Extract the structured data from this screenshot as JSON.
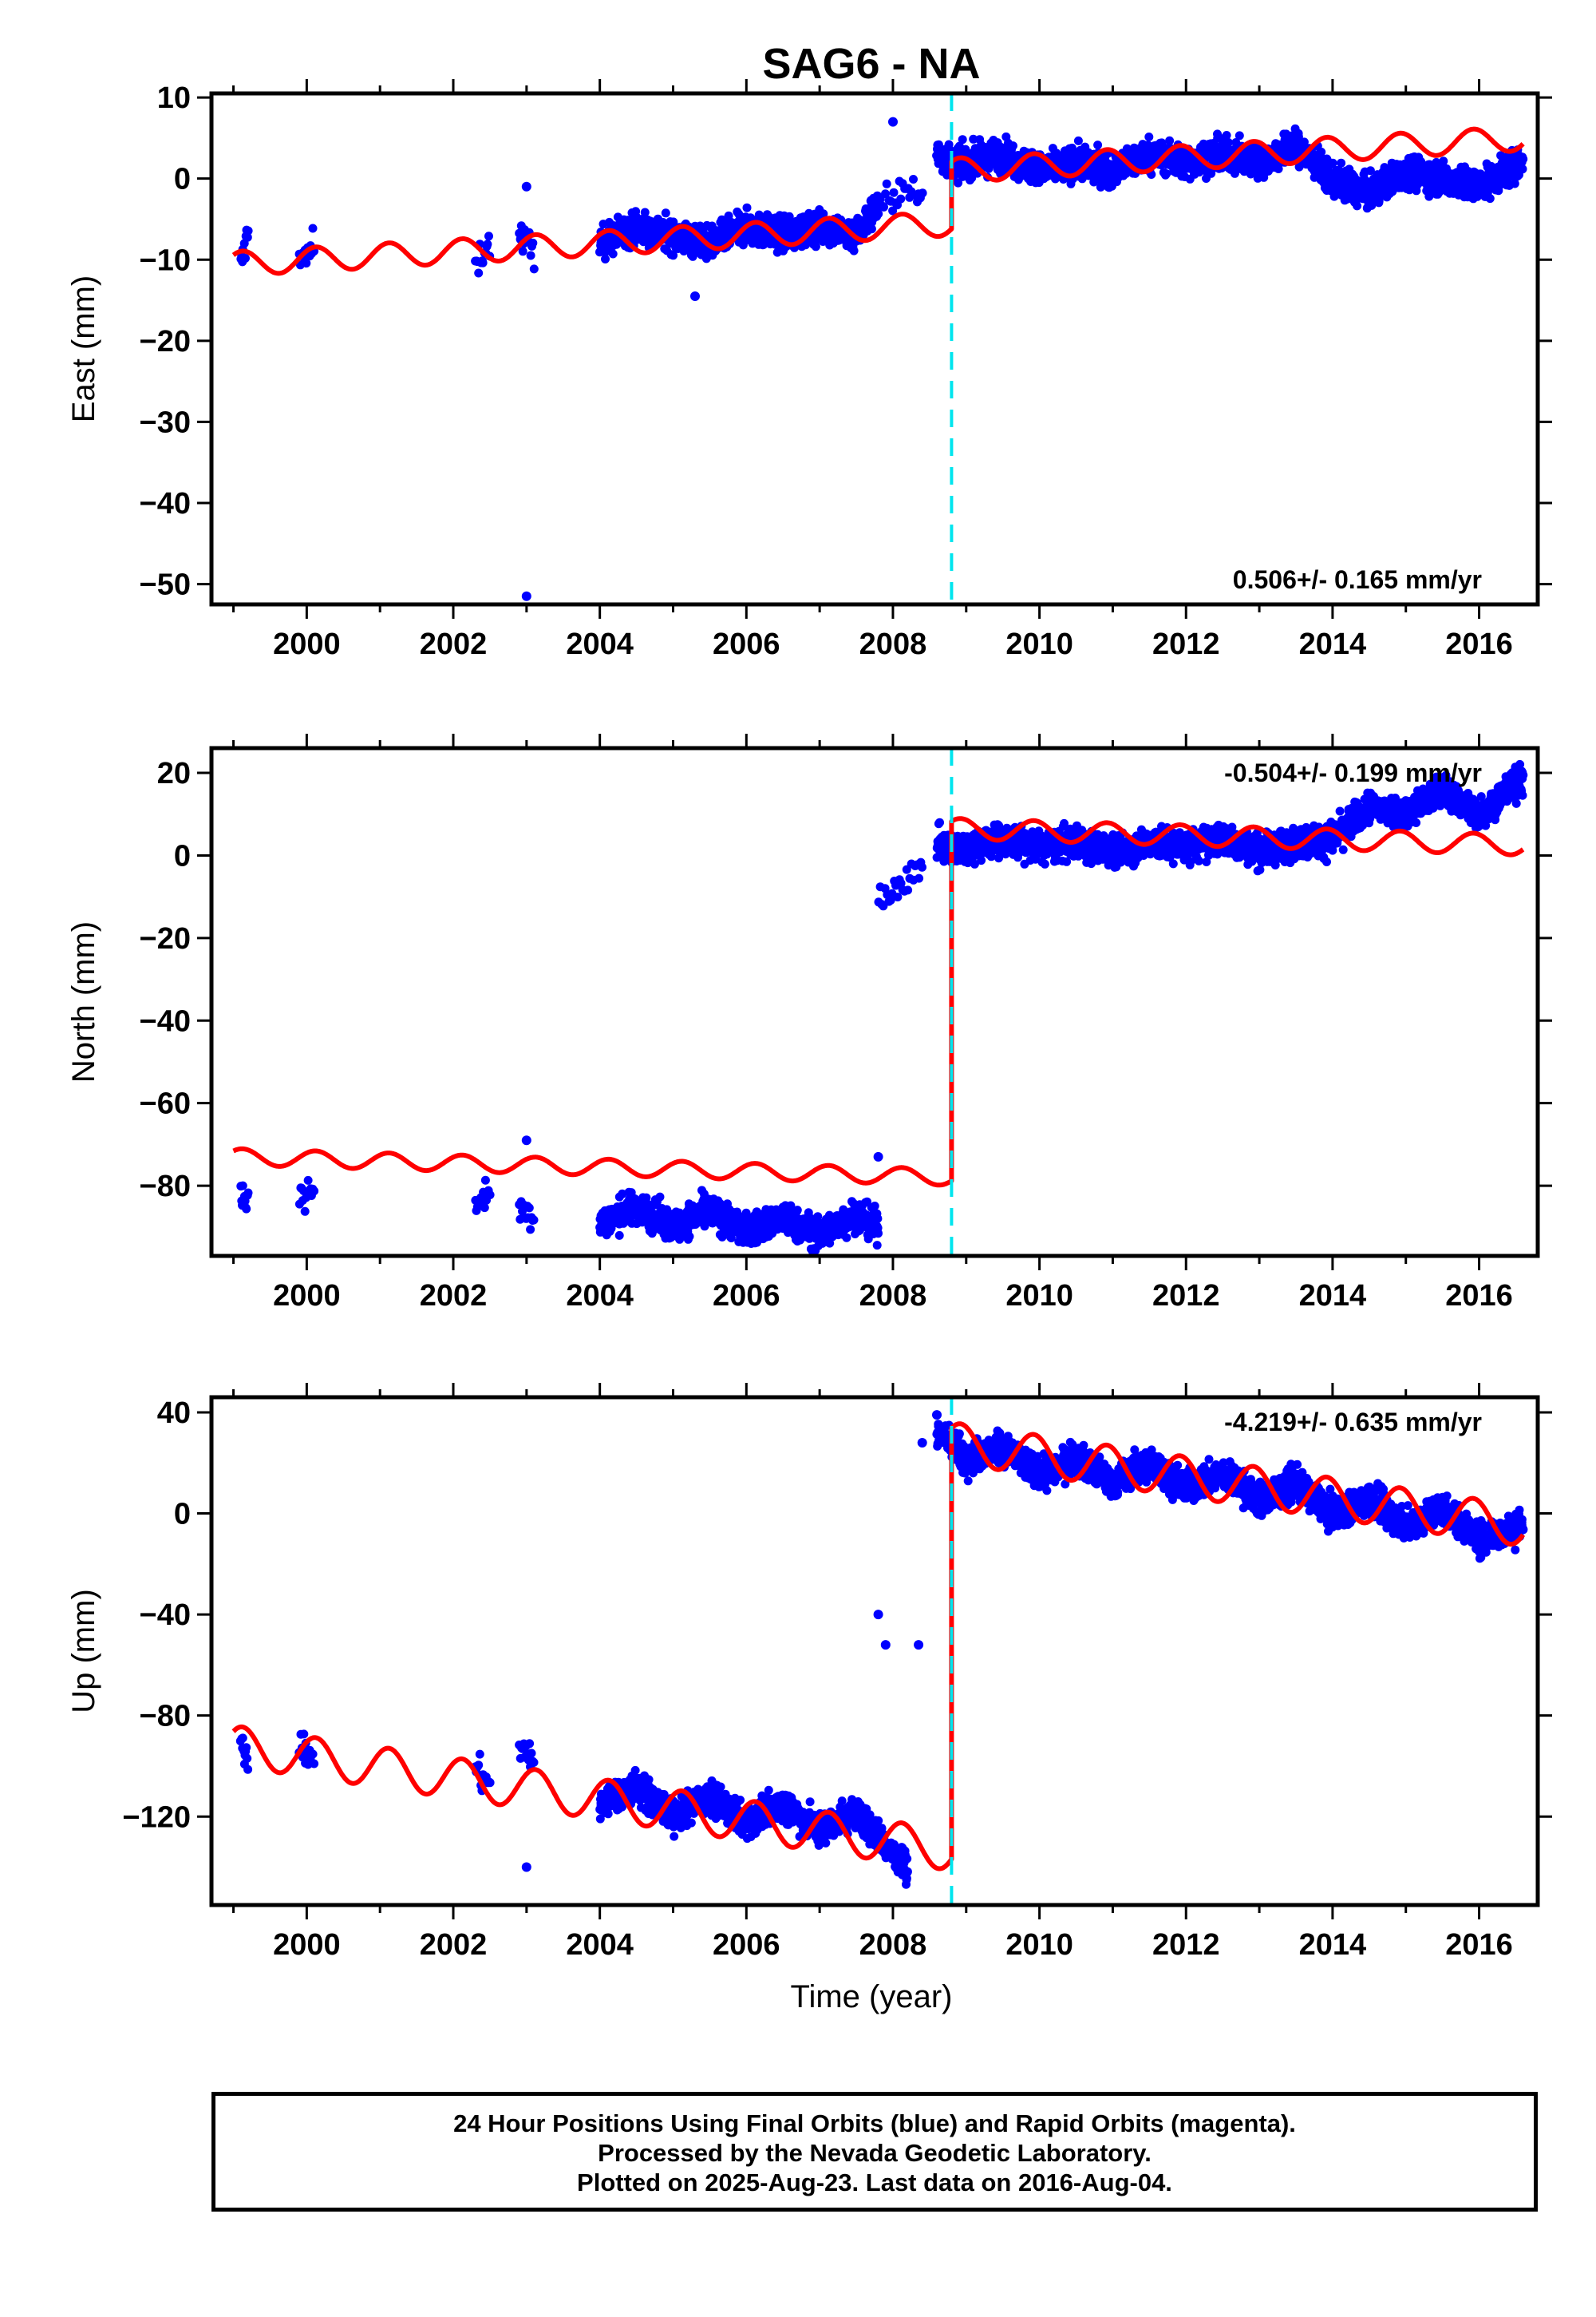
{
  "title": "SAG6 - NA",
  "xlabel": "Time (year)",
  "footer": {
    "line1": "24 Hour Positions Using Final Orbits (blue) and Rapid Orbits (magenta).",
    "line2": "Processed by the Nevada Geodetic Laboratory.",
    "line3": "Plotted on 2025-Aug-23. Last data on 2016-Aug-04."
  },
  "colors": {
    "data": "#0000ff",
    "model": "#ff0000",
    "break": "#00e5ee",
    "frame": "#000000"
  },
  "chart_data": [
    {
      "type": "scatter",
      "panel": "east",
      "ylabel": "East (mm)",
      "rate": "0.506+/- 0.165 mm/yr",
      "xlim": [
        1998.7,
        2016.8
      ],
      "ylim": [
        -52.5,
        10.5
      ],
      "yticks": [
        10,
        0,
        -10,
        -20,
        -30,
        -40,
        -50
      ],
      "ytick_labels": [
        "10",
        "0",
        "−10",
        "−20",
        "−30",
        "−40",
        "−50"
      ],
      "xticks": [
        2000,
        2002,
        2004,
        2006,
        2008,
        2010,
        2012,
        2014,
        2016
      ],
      "xtick_labels": [
        "2000",
        "2002",
        "2004",
        "2006",
        "2008",
        "2010",
        "2012",
        "2014",
        "2016"
      ],
      "break_x": 2008.8,
      "series": [
        {
          "role": "data",
          "segments": [
            {
              "x": [
                1999.1,
                1999.15,
                1999.2
              ],
              "y": [
                -11,
                -9,
                -6
              ]
            },
            {
              "x": [
                1999.9,
                2000.0,
                2000.1
              ],
              "y": [
                -9,
                -10,
                -8
              ]
            },
            {
              "x": [
                2002.3,
                2002.4,
                2002.5
              ],
              "y": [
                -11,
                -9,
                -8
              ]
            },
            {
              "x": [
                2002.9,
                2003.0,
                2003.1
              ],
              "y": [
                -7,
                -8,
                -9
              ]
            },
            {
              "x": [
                2004.0,
                2004.5,
                2005.0,
                2005.5,
                2006.0,
                2006.5,
                2007.0,
                2007.5,
                2007.8
              ],
              "y": [
                -8,
                -6,
                -7,
                -8,
                -6,
                -7,
                -6,
                -7,
                -3
              ]
            },
            {
              "x": [
                2007.8,
                2008.0,
                2008.2,
                2008.4
              ],
              "y": [
                -4,
                -2,
                -1,
                -3
              ]
            },
            {
              "x": [
                2008.6,
                2008.8,
                2009.0,
                2009.5,
                2010.0,
                2010.5,
                2011.0,
                2011.5,
                2012.0,
                2012.5,
                2013.0,
                2013.5,
                2014.0,
                2014.5,
                2015.0,
                2015.5,
                2016.0,
                2016.6
              ],
              "y": [
                3,
                2,
                2,
                3,
                1,
                2,
                1,
                3,
                2,
                3,
                2,
                4,
                0,
                -2,
                1,
                0,
                -1,
                2
              ]
            }
          ],
          "outliers": [
            {
              "x": 2003.0,
              "y": -1
            },
            {
              "x": 2003.0,
              "y": -51.5
            },
            {
              "x": 2005.3,
              "y": -14.5
            },
            {
              "x": 2008.0,
              "y": 7
            }
          ]
        },
        {
          "role": "model",
          "start_pre": -10.5,
          "slope_pre": 0.506,
          "amp_pre": 1.5,
          "offset_after": 5.0,
          "amp_post": 1.5,
          "start_post": 1.0
        }
      ]
    },
    {
      "type": "scatter",
      "panel": "north",
      "ylabel": "North (mm)",
      "rate": "-0.504+/- 0.199 mm/yr",
      "xlim": [
        1998.7,
        2016.8
      ],
      "ylim": [
        -97,
        26
      ],
      "yticks": [
        20,
        0,
        -20,
        -40,
        -60,
        -80
      ],
      "ytick_labels": [
        "20",
        "0",
        "−20",
        "−40",
        "−60",
        "−80"
      ],
      "xticks": [
        2000,
        2002,
        2004,
        2006,
        2008,
        2010,
        2012,
        2014,
        2016
      ],
      "xtick_labels": [
        "2000",
        "2002",
        "2004",
        "2006",
        "2008",
        "2010",
        "2012",
        "2014",
        "2016"
      ],
      "break_x": 2008.8,
      "series": [
        {
          "role": "data",
          "segments": [
            {
              "x": [
                1999.1,
                1999.2
              ],
              "y": [
                -82,
                -83
              ]
            },
            {
              "x": [
                1999.9,
                2000.1
              ],
              "y": [
                -83,
                -82
              ]
            },
            {
              "x": [
                2002.3,
                2002.5
              ],
              "y": [
                -84,
                -82
              ]
            },
            {
              "x": [
                2002.9,
                2003.1
              ],
              "y": [
                -86,
                -87
              ]
            },
            {
              "x": [
                2004.0,
                2004.5,
                2005.0,
                2005.5,
                2006.0,
                2006.5,
                2007.0,
                2007.5,
                2007.8
              ],
              "y": [
                -89,
                -85,
                -90,
                -86,
                -91,
                -88,
                -92,
                -87,
                -90
              ]
            },
            {
              "x": [
                2007.8,
                2008.0,
                2008.2,
                2008.4
              ],
              "y": [
                -10,
                -8,
                -5,
                -4
              ]
            },
            {
              "x": [
                2008.6,
                2008.8,
                2009.0,
                2009.5,
                2010.0,
                2010.5,
                2011.0,
                2011.5,
                2012.0,
                2012.5,
                2013.0,
                2013.5,
                2014.0,
                2014.5,
                2015.0,
                2015.5,
                2016.0,
                2016.6
              ],
              "y": [
                3,
                1,
                2,
                4,
                2,
                3,
                1,
                3,
                2,
                4,
                1,
                3,
                4,
                12,
                10,
                16,
                10,
                19
              ]
            }
          ],
          "outliers": [
            {
              "x": 2003.0,
              "y": -69
            },
            {
              "x": 2007.8,
              "y": -73
            }
          ]
        },
        {
          "role": "model",
          "start_pre": -73,
          "slope_pre": -0.504,
          "amp_pre": 2.0,
          "offset_after": 87,
          "amp_post": 2.5,
          "start_post": 6.5
        }
      ]
    },
    {
      "type": "scatter",
      "panel": "up",
      "ylabel": "Up (mm)",
      "rate": "-4.219+/- 0.635 mm/yr",
      "xlim": [
        1998.7,
        2016.8
      ],
      "ylim": [
        -155,
        46
      ],
      "yticks": [
        40,
        0,
        -40,
        -80,
        -120
      ],
      "ytick_labels": [
        "40",
        "0",
        "−40",
        "−80",
        "−120"
      ],
      "xticks": [
        2000,
        2002,
        2004,
        2006,
        2008,
        2010,
        2012,
        2014,
        2016
      ],
      "xtick_labels": [
        "2000",
        "2002",
        "2004",
        "2006",
        "2008",
        "2010",
        "2012",
        "2014",
        "2016"
      ],
      "break_x": 2008.8,
      "series": [
        {
          "role": "data",
          "segments": [
            {
              "x": [
                1999.1,
                1999.2
              ],
              "y": [
                -92,
                -98
              ]
            },
            {
              "x": [
                1999.9,
                2000.1
              ],
              "y": [
                -92,
                -98
              ]
            },
            {
              "x": [
                2002.3,
                2002.5
              ],
              "y": [
                -100,
                -108
              ]
            },
            {
              "x": [
                2002.9,
                2003.1
              ],
              "y": [
                -92,
                -98
              ]
            },
            {
              "x": [
                2004.0,
                2004.5,
                2005.0,
                2005.5,
                2006.0,
                2006.5,
                2007.0,
                2007.5,
                2008.0,
                2008.2
              ],
              "y": [
                -115,
                -108,
                -120,
                -112,
                -122,
                -115,
                -125,
                -118,
                -135,
                -140
              ]
            },
            {
              "x": [
                2008.6,
                2008.8,
                2009.0,
                2009.5,
                2010.0,
                2010.5,
                2011.0,
                2011.5,
                2012.0,
                2012.5,
                2013.0,
                2013.5,
                2014.0,
                2014.5,
                2015.0,
                2015.5,
                2016.0,
                2016.6
              ],
              "y": [
                32,
                28,
                22,
                26,
                15,
                22,
                12,
                20,
                10,
                16,
                5,
                12,
                0,
                6,
                -5,
                2,
                -10,
                -5
              ]
            }
          ],
          "outliers": [
            {
              "x": 2003.0,
              "y": -140
            },
            {
              "x": 2007.8,
              "y": -40
            },
            {
              "x": 2007.9,
              "y": -52
            },
            {
              "x": 2008.35,
              "y": -52
            },
            {
              "x": 2008.4,
              "y": 28
            },
            {
              "x": 2008.6,
              "y": 39
            }
          ]
        },
        {
          "role": "model",
          "start_pre": -92,
          "slope_pre": -4.219,
          "amp_pre": 8.0,
          "offset_after": 150,
          "amp_post": 8.0,
          "start_post": 28
        }
      ]
    }
  ]
}
